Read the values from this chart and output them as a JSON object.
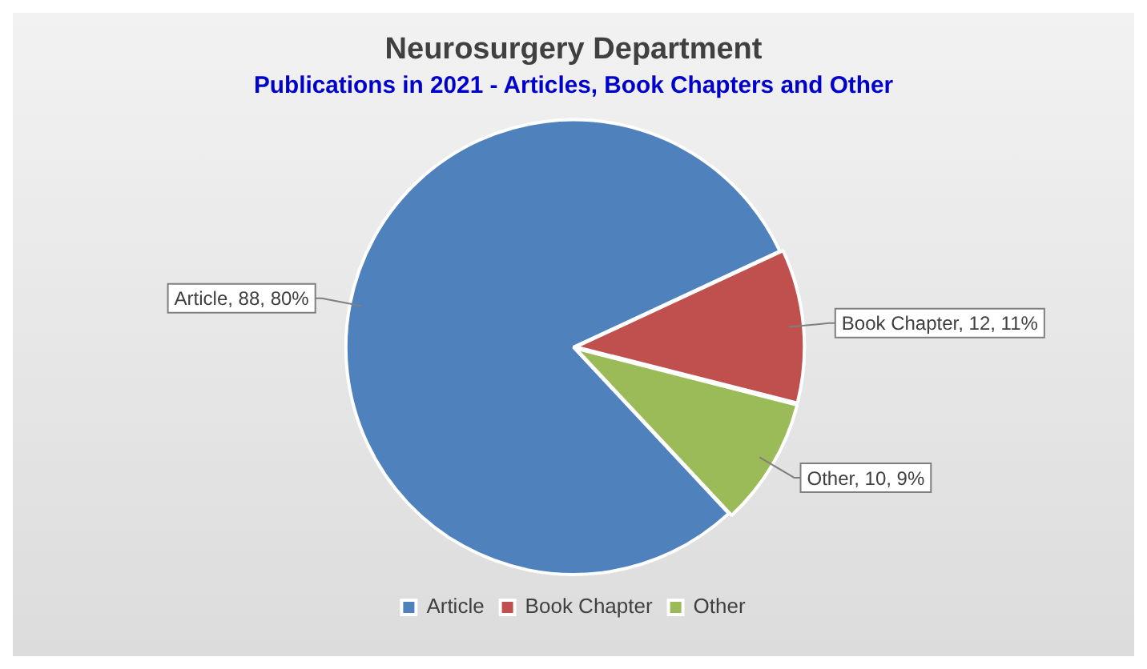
{
  "chart_data": {
    "type": "pie",
    "title": "Neurosurgery Department",
    "subtitle": "Publications in 2021 - Articles, Book Chapters and Other",
    "categories": [
      "Article",
      "Book Chapter",
      "Other"
    ],
    "values": [
      88,
      12,
      10
    ],
    "colors": [
      "#4f81bd",
      "#c0504d",
      "#9bbb59"
    ],
    "value_labels": [
      "Article, 88, 80%",
      "Book Chapter, 12, 11%",
      "Other, 10, 9%"
    ],
    "legend": "bottom"
  }
}
